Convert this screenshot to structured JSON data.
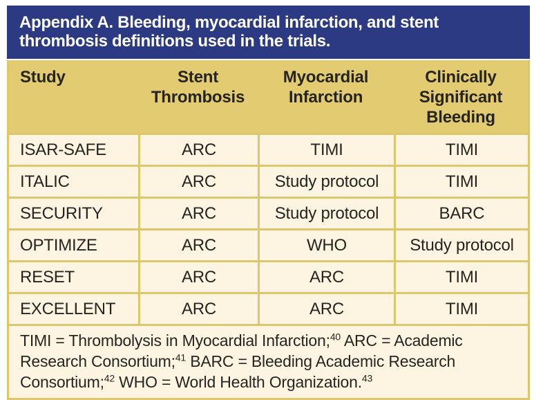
{
  "title": "Appendix A. Bleeding, myocardial infarction, and stent thrombosis definitions used in the trials.",
  "table": {
    "columns": [
      "Study",
      "Stent Thrombosis",
      "Myocardial Infarction",
      "Clinically Significant Bleeding"
    ],
    "rows": [
      [
        "ISAR-SAFE",
        "ARC",
        "TIMI",
        "TIMI"
      ],
      [
        "ITALIC",
        "ARC",
        "Study protocol",
        "TIMI"
      ],
      [
        "SECURITY",
        "ARC",
        "Study protocol",
        "BARC"
      ],
      [
        "OPTIMIZE",
        "ARC",
        "WHO",
        "Study protocol"
      ],
      [
        "RESET",
        "ARC",
        "ARC",
        "TIMI"
      ],
      [
        "EXCELLENT",
        "ARC",
        "ARC",
        "TIMI"
      ]
    ]
  },
  "footnote": {
    "parts": [
      {
        "text": "TIMI = Thrombolysis in Myocardial Infarction;",
        "sup": "40"
      },
      {
        "text": " ARC = Academic Research Consortium;",
        "sup": "41"
      },
      {
        "text": " BARC = Bleeding Academic Research Consortium;",
        "sup": "42"
      },
      {
        "text": " WHO = World Health Organization.",
        "sup": "43"
      }
    ]
  },
  "colors": {
    "banner_blue": "#2c3a83",
    "header_tan": "#e2cb70",
    "border_gold": "#ddc76a",
    "cell_cream": "#fdf5e2",
    "text_dark": "#262420",
    "banner_text": "#ffffff"
  }
}
